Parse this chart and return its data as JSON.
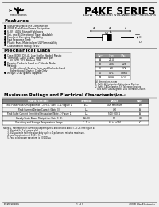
{
  "title": "P4KE SERIES",
  "subtitle": "400W TRANSIENT VOLTAGE SUPPRESSORS",
  "bg_color": "#f0f0f0",
  "features_title": "Features",
  "features": [
    "Glass Passivated Die Construction",
    "400W Peak Pulse/Power Dissipation",
    "6.8V - 440V Standoff Voltages",
    "Uni- and Bi-Directional Types Available",
    "Excellent Clamping Capability",
    "Fast Response Time",
    "Plastic Knee-Material per UL Flammability",
    "Classification Rating 94V-0"
  ],
  "mech_title": "Mechanical Data",
  "mech_data": [
    [
      "bullet",
      "Case: JEDEC DO-41 Low Profile Molded Plastic"
    ],
    [
      "bullet",
      "Terminals: Axial Leads, Solderable per"
    ],
    [
      "indent",
      "MIL-STD-202, Method 208"
    ],
    [
      "bullet",
      "Polarity: Cathode-Band on Cathode-Node"
    ],
    [
      "bullet",
      "Marking:"
    ],
    [
      "indent",
      "Unidirectional: Device Code and Cathode-Band"
    ],
    [
      "indent",
      "Bidirectional: Device Code-Only"
    ],
    [
      "bullet",
      "Weight: 0.40 grams (approx.)"
    ]
  ],
  "table_headers": [
    "Dim",
    "Min",
    "Max"
  ],
  "table_rows": [
    [
      "A",
      "25.4",
      ""
    ],
    [
      "B",
      "4.06",
      "5.21"
    ],
    [
      "C",
      "2.0",
      "2.72"
    ],
    [
      "D",
      "0.71",
      "0.864"
    ],
    [
      "Da",
      "0.041",
      "0.737"
    ]
  ],
  "table_note": "All dimensions in mm",
  "ratings_title": "Maximum Ratings and Electrical Characteristics",
  "ratings_subtitle": "(T₂₅°C unless otherwise specified)",
  "ratings_headers": [
    "Characteristic",
    "Symbol",
    "Value",
    "Unit"
  ],
  "ratings_rows": [
    [
      "Peak Pulse Power Dissipation at Tₑ=75°C (Note 1, 2) Figure 1",
      "Pₚₚₘ",
      "400 Minimum",
      "W"
    ],
    [
      "Peak Current Design Current (Note 3)",
      "Iₚₚₘ",
      "400",
      "A"
    ],
    [
      "Peak Pulse Current Permitted Dissipation (Note 4) Figure 1",
      "Iₚₚₘ",
      "500/ 600/ 1",
      "A"
    ],
    [
      "Steady State Power Dissipation (Note 5, 6)",
      "Pᴅ(AV)",
      "5.0",
      "W"
    ],
    [
      "Operating and Storage Temperature Range",
      "Tⱼ, Tₛₜɢ",
      "-65 to +150",
      "°C"
    ]
  ],
  "notes": [
    "Notes: 1. Non-repetitive current pulse per Figure 1 and derated above Tₐ = 25 (see Figure 4)",
    "       2. Mounted on 1x1 copper pad.",
    "       3. 8/20μs single half sine-wave duty cycle = 4 pulses and minutes maximum.",
    "       4. Lead temperature at 9.5C = 1.",
    "       5. Peak pulse power waveform is 10/1000μs"
  ],
  "footer_left": "P4KE SERIES",
  "footer_center": "1 of 3",
  "footer_right": "400W Wte Electronics"
}
